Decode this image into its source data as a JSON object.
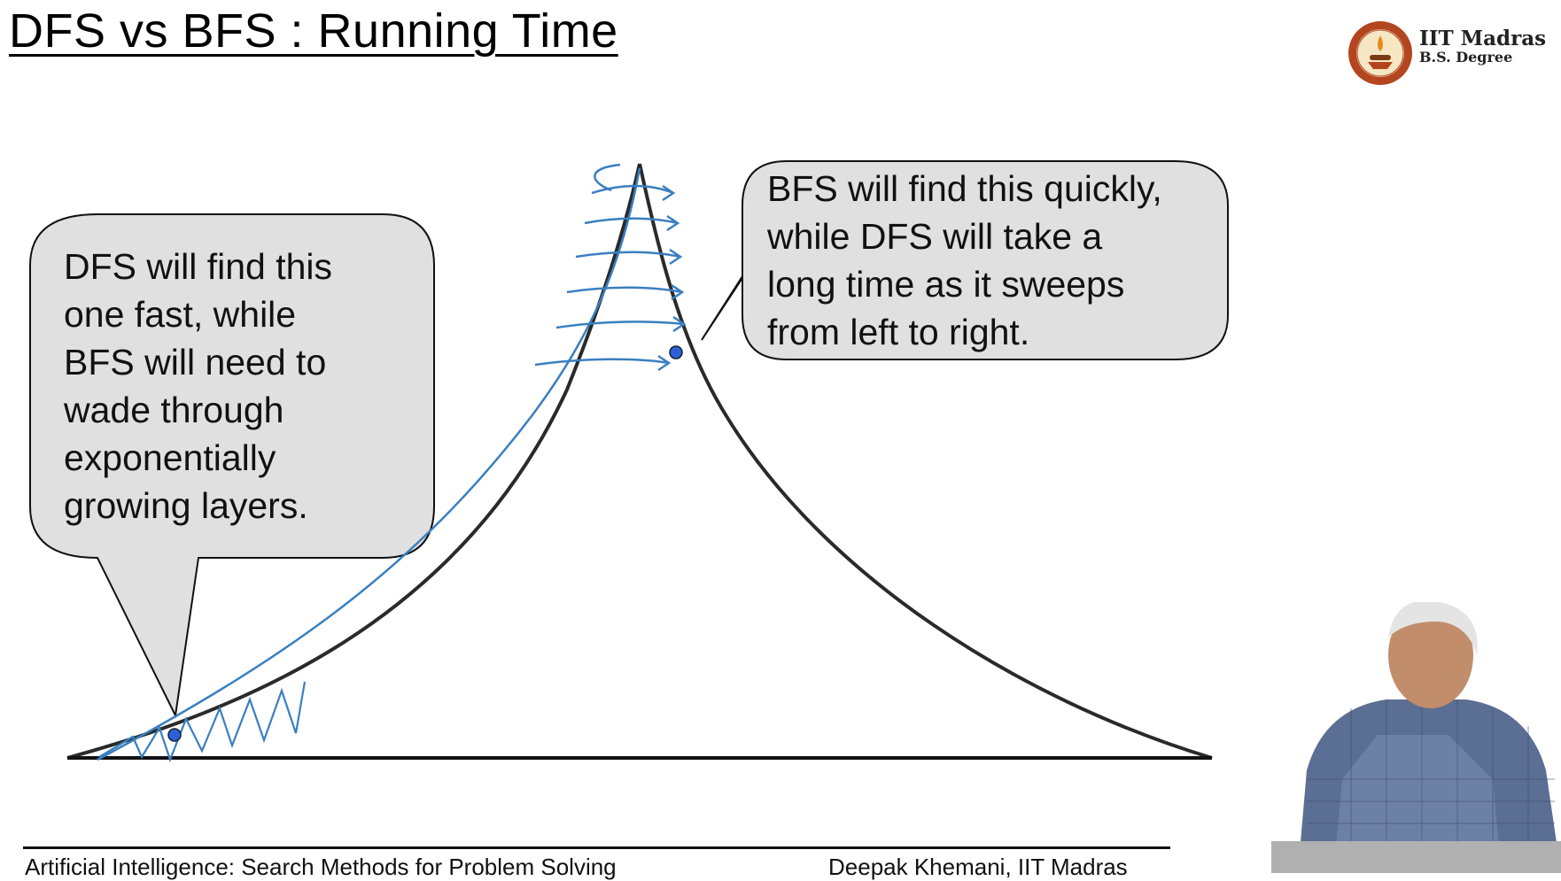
{
  "slide": {
    "title": "DFS vs BFS : Running Time"
  },
  "logo": {
    "name": "IIT Madras",
    "subtitle": "B.S. Degree",
    "icon": "iit-madras-seal-icon"
  },
  "callouts": {
    "left": {
      "lines": [
        "DFS will find this",
        "one fast, while",
        "BFS will need to",
        "wade through",
        "exponentially",
        "growing layers."
      ]
    },
    "right": {
      "lines": [
        "BFS will find this quickly,",
        "while DFS will take a",
        "long time as it sweeps",
        "from left to right."
      ]
    }
  },
  "footer": {
    "course": "Artificial Intelligence: Search Methods for Problem Solving",
    "author": "Deepak Khemani, IIT Madras"
  },
  "colors": {
    "callout_fill": "#e0e0e0",
    "ink_blue": "#3a7fc0",
    "dot_blue": "#2f5fd8",
    "tree_outline": "#2a2a2a"
  }
}
